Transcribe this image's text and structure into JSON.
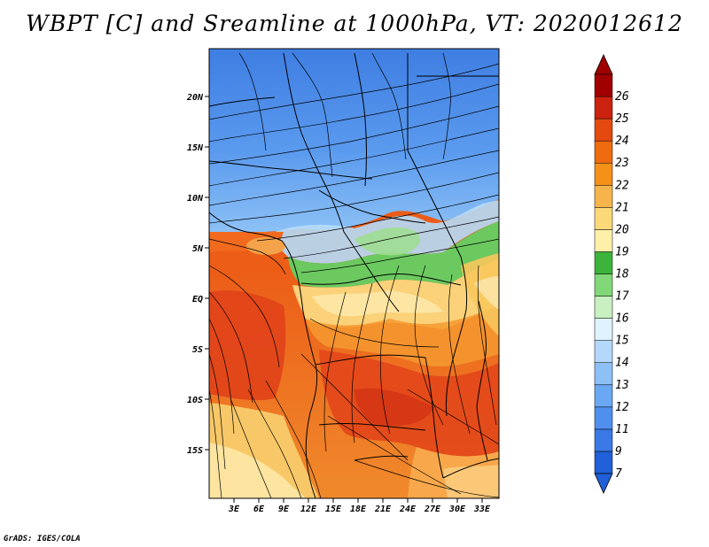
{
  "title": "WBPT [C] and Sreamline at 1000hPa, VT: 2020012612",
  "credit": "GrADS: IGES/COLA",
  "map": {
    "lat_ticks": [
      "20N",
      "15N",
      "10N",
      "5N",
      "EQ",
      "5S",
      "10S",
      "15S"
    ],
    "lon_ticks": [
      "3E",
      "6E",
      "9E",
      "12E",
      "15E",
      "18E",
      "21E",
      "24E",
      "27E",
      "30E",
      "33E"
    ],
    "lat_range": [
      -19,
      24
    ],
    "lon_range": [
      0,
      35
    ]
  },
  "colorbar": {
    "labels": [
      "7",
      "9",
      "11",
      "12",
      "13",
      "14",
      "15",
      "16",
      "17",
      "18",
      "19",
      "20",
      "21",
      "22",
      "23",
      "24",
      "25",
      "26"
    ],
    "colors": [
      "#2060d8",
      "#3a78e6",
      "#4f90ef",
      "#6aa8f4",
      "#8dc0f7",
      "#b4d8fa",
      "#dff2ff",
      "#c8f0c0",
      "#82d878",
      "#3cb43c",
      "#fff0a8",
      "#fbd878",
      "#f6b44a",
      "#f59018",
      "#f06a10",
      "#e44a10",
      "#cc2210",
      "#a00000"
    ]
  },
  "legend_colors": {
    "cool": "#4a8ae0",
    "green": "#70cc64",
    "warm": "#ee6a1e"
  }
}
